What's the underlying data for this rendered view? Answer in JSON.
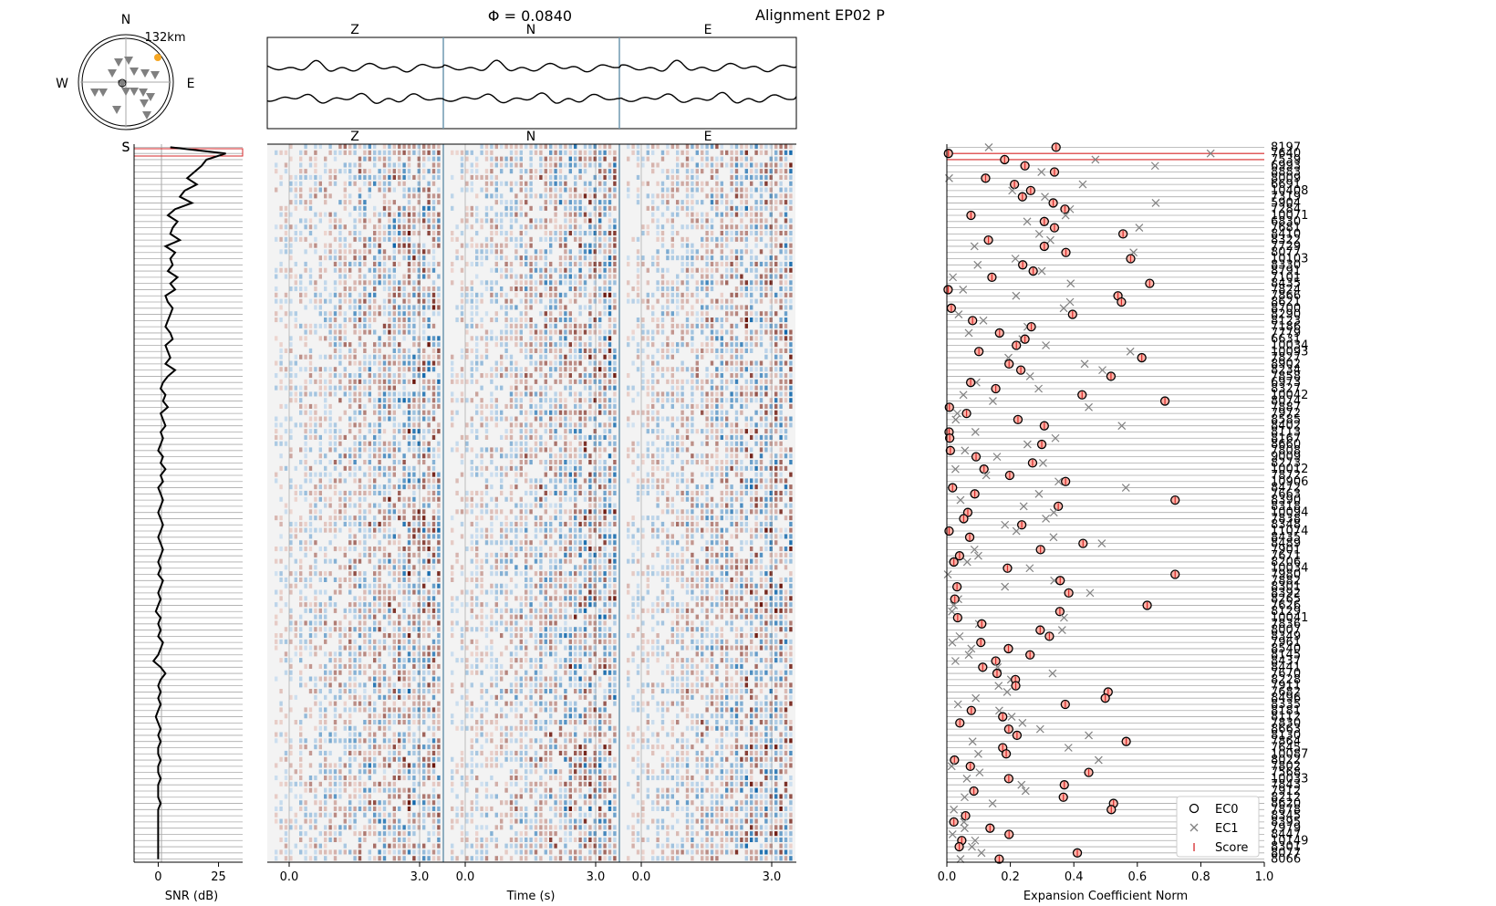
{
  "figure": {
    "title_phi": "Φ = 0.0840",
    "title_alignment": "Alignment EP02 P"
  },
  "map": {
    "directions": {
      "n": "N",
      "s": "S",
      "e": "E",
      "w": "W"
    },
    "distance_label": "132km"
  },
  "colors": {
    "waveform": "#000000",
    "highlight": "#d62728",
    "station_marker": "#808080",
    "event_marker": "#f5a623",
    "separator": "#6f98b0",
    "grid": "#aaaaaa",
    "ec0_fill": "#ffb3a8"
  },
  "chart_data": [
    {
      "type": "line",
      "name": "waveforms-stack",
      "components": [
        "Z",
        "N",
        "E"
      ],
      "traces": 2
    },
    {
      "type": "line",
      "name": "snr",
      "xlabel": "SNR (dB)",
      "xticks": [
        "0",
        "25"
      ],
      "xlim": [
        -10,
        35
      ],
      "traces": 116,
      "values": [
        5.0,
        28.0,
        20.0,
        18.0,
        15.0,
        12.0,
        16.0,
        11.0,
        9.0,
        14.0,
        7.0,
        4.0,
        8.0,
        6.0,
        5.0,
        9.0,
        3.0,
        7.0,
        5.0,
        6.0,
        4.0,
        8.0,
        5.0,
        7.0,
        3.0,
        4.0,
        6.0,
        5.0,
        4.0,
        3.0,
        5.0,
        6.0,
        3.0,
        4.0,
        5.0,
        3.0,
        7.0,
        4.0,
        2.0,
        1.0,
        3.0,
        2.0,
        4.0,
        1.0,
        2.0,
        3.0,
        1.0,
        2.0,
        1.0,
        0.0,
        2.0,
        1.0,
        3.0,
        1.0,
        2.0,
        0.0,
        1.0,
        2.0,
        1.0,
        0.0,
        1.0,
        2.0,
        1.0,
        0.0,
        1.0,
        2.0,
        1.0,
        0.0,
        1.0,
        0.0,
        2.0,
        1.0,
        0.0,
        1.0,
        0.0,
        -1.0,
        1.0,
        0.0,
        1.0,
        0.0,
        2.0,
        1.0,
        0.0,
        -2.0,
        1.0,
        3.0,
        1.0,
        0.0,
        1.0,
        0.0,
        1.0,
        0.0,
        -1.0,
        0.0,
        1.0,
        0.0,
        1.0,
        0.0,
        0.0,
        1.0,
        0.0,
        0.0,
        1.0,
        0.0,
        0.0,
        0.0,
        1.0,
        0.0,
        0.0,
        0.0,
        0.0,
        0.0,
        0.0,
        0.0,
        0.0,
        0.0
      ]
    },
    {
      "type": "heatmap",
      "name": "aligned-traces",
      "xlabel": "Time (s)",
      "components": [
        "Z",
        "N",
        "E"
      ],
      "xticks": [
        "0.0",
        "3.0"
      ],
      "traces": 116
    },
    {
      "type": "scatter",
      "name": "expansion-coefficients",
      "xlabel": "Expansion Coefficient Norm",
      "xlim": [
        0.0,
        1.0
      ],
      "xticks": [
        "0.0",
        "0.2",
        "0.4",
        "0.6",
        "0.8",
        "1.0"
      ],
      "legend": {
        "position": "lower-right",
        "ec0": "EC0",
        "ec1": "EC1",
        "score": "Score"
      },
      "stations": [
        "8197",
        "7640",
        "7539",
        "6993",
        "8883",
        "8009",
        "6691",
        "10408",
        "7319",
        "5904",
        "7284",
        "10071",
        "6830",
        "7681",
        "8410",
        "8322",
        "7729",
        "8077",
        "10103",
        "8330",
        "8791",
        "7101",
        "8435",
        "7824",
        "7866",
        "8621",
        "8700",
        "8290",
        "8123",
        "7186",
        "7779",
        "6631",
        "10034",
        "10093",
        "7827",
        "8902",
        "8234",
        "7858",
        "6973",
        "8327",
        "10042",
        "8074",
        "7887",
        "7972",
        "8585",
        "8402",
        "8113",
        "8167",
        "8660",
        "7808",
        "9009",
        "8273",
        "10012",
        "7872",
        "10906",
        "8472",
        "7663",
        "8390",
        "8318",
        "10094",
        "7838",
        "8348",
        "11074",
        "8435",
        "8489",
        "7901",
        "7671",
        "8206",
        "10034",
        "7980",
        "7882",
        "8301",
        "8392",
        "8265",
        "7626",
        "8129",
        "10041",
        "7836",
        "8007",
        "8349",
        "7961",
        "8540",
        "8145",
        "8437",
        "8441",
        "7670",
        "8228",
        "7911",
        "7682",
        "8496",
        "8335",
        "8181",
        "8112",
        "7830",
        "8663",
        "8130",
        "7864",
        "7645",
        "10087",
        "8022",
        "7802",
        "7568",
        "10033",
        "7843",
        "7912",
        "8212",
        "8620",
        "7878",
        "8345",
        "8395",
        "7979",
        "8447",
        "10149",
        "8301",
        "8077",
        "8066"
      ],
      "highlight": [
        1,
        2
      ],
      "ec0": [
        0.344,
        0.005,
        0.182,
        0.246,
        0.339,
        0.122,
        0.213,
        0.264,
        0.238,
        0.335,
        0.372,
        0.076,
        0.307,
        0.339,
        0.555,
        0.131,
        0.307,
        0.375,
        0.579,
        0.239,
        0.272,
        0.142,
        0.639,
        0.004,
        0.539,
        0.55,
        0.014,
        0.396,
        0.081,
        0.266,
        0.166,
        0.246,
        0.219,
        0.101,
        0.614,
        0.196,
        0.233,
        0.517,
        0.075,
        0.154,
        0.426,
        0.687,
        0.008,
        0.062,
        0.224,
        0.307,
        0.007,
        0.009,
        0.299,
        0.011,
        0.092,
        0.27,
        0.117,
        0.198,
        0.374,
        0.018,
        0.088,
        0.719,
        0.351,
        0.066,
        0.053,
        0.236,
        0.007,
        0.072,
        0.429,
        0.295,
        0.04,
        0.022,
        0.191,
        0.719,
        0.357,
        0.032,
        0.384,
        0.025,
        0.631,
        0.356,
        0.034,
        0.11,
        0.294,
        0.323,
        0.107,
        0.194,
        0.262,
        0.154,
        0.113,
        0.158,
        0.216,
        0.217,
        0.508,
        0.499,
        0.373,
        0.077,
        0.176,
        0.041,
        0.195,
        0.221,
        0.565,
        0.176,
        0.187,
        0.024,
        0.074,
        0.447,
        0.195,
        0.37,
        0.085,
        0.367,
        0.525,
        0.518,
        0.059,
        0.022,
        0.136,
        0.196,
        0.047,
        0.039,
        0.411,
        0.165
      ],
      "ec1": [
        0.132,
        0.831,
        0.468,
        0.656,
        0.298,
        0.007,
        0.428,
        0.206,
        0.309,
        0.658,
        0.388,
        0.374,
        0.253,
        0.606,
        0.291,
        0.326,
        0.087,
        0.588,
        0.216,
        0.097,
        0.299,
        0.019,
        0.39,
        0.051,
        0.218,
        0.388,
        0.368,
        0.037,
        0.115,
        0.254,
        0.069,
        0.238,
        0.312,
        0.578,
        0.194,
        0.434,
        0.49,
        0.262,
        0.093,
        0.289,
        0.052,
        0.145,
        0.447,
        0.033,
        0.028,
        0.551,
        0.09,
        0.342,
        0.254,
        0.057,
        0.158,
        0.303,
        0.027,
        0.124,
        0.352,
        0.564,
        0.29,
        0.043,
        0.242,
        0.337,
        0.312,
        0.183,
        0.219,
        0.336,
        0.488,
        0.087,
        0.099,
        0.064,
        0.261,
        0.003,
        0.338,
        0.183,
        0.451,
        0.036,
        0.022,
        0.016,
        0.369,
        0.101,
        0.363,
        0.04,
        0.017,
        0.077,
        0.069,
        0.027,
        0.16,
        0.333,
        0.202,
        0.163,
        0.19,
        0.091,
        0.035,
        0.165,
        0.204,
        0.238,
        0.294,
        0.447,
        0.081,
        0.383,
        0.099,
        0.478,
        0.015,
        0.103,
        0.063,
        0.235,
        0.248,
        0.056,
        0.144,
        0.022,
        0.055,
        0.054,
        0.056,
        0.018,
        0.089,
        0.079,
        0.109,
        0.043
      ]
    }
  ]
}
